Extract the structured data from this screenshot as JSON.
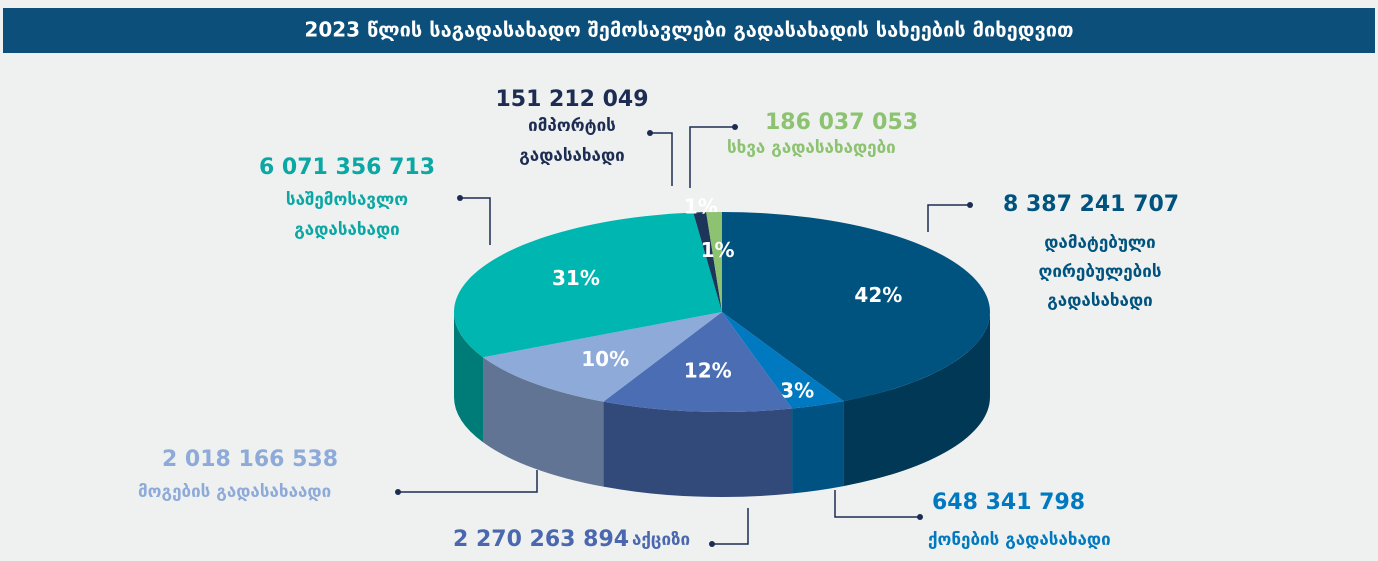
{
  "chart_data": {
    "type": "pie",
    "title": "2023 წლის საგადასახადო შემოსავლები გადასახადის სახეების მიხედვით",
    "categories": [
      [
        "დამატებული",
        "ღირებულების",
        "გადასახადი"
      ],
      [
        "ქონების გადასახადი"
      ],
      [
        "აქციზი"
      ],
      [
        "მოგების გადასახაადი"
      ],
      [
        "საშემოსავლო",
        "გადასახადი"
      ],
      [
        "იმპორტის",
        "გადასახადი"
      ],
      [
        "სხვა გადასახადები"
      ]
    ],
    "values": [
      8387241707,
      648341798,
      2270263894,
      2018166538,
      6071356713,
      151212049,
      186037053
    ],
    "value_labels": [
      "8 387 241 707",
      "648 341 798",
      "2 270 263 894",
      "2 018 166 538",
      "6 071 356 713",
      "151 212 049",
      "186 037 053"
    ],
    "percent_labels": [
      "42%",
      "3%",
      "12%",
      "10%",
      "31%",
      "1%",
      "1%"
    ],
    "colors": [
      "#00527f",
      "#0079c1",
      "#4a6db3",
      "#8eaad9",
      "#00b6b1",
      "#1c3558",
      "#8cc270"
    ],
    "label_colors": [
      "#00527f",
      "#0079c1",
      "#4a67af",
      "#8eaad9",
      "#0aa7a5",
      "#1d2c52",
      "#8cc270"
    ]
  }
}
